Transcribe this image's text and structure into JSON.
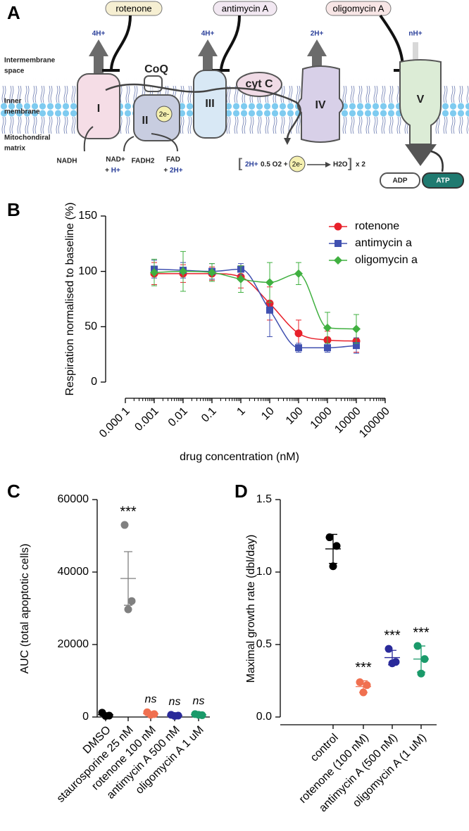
{
  "diagram": {
    "label": "A",
    "inhibitors": [
      "rotenone",
      "antimycin A",
      "oligomycin A"
    ],
    "protons": [
      "4H+",
      "4H+",
      "2H+",
      "nH+"
    ],
    "regions": [
      "Intermembrane",
      "space",
      "Inner",
      "membrane",
      "Mitochondiral",
      "matrix"
    ],
    "complexes": [
      "I",
      "II",
      "III",
      "IV",
      "V"
    ],
    "carriers": [
      "CoQ",
      "cyt C"
    ],
    "electron": "2e-",
    "substrates": [
      "NADH",
      "NAD+",
      "+ ",
      "H+",
      "FADH2",
      "FAD",
      "+ ",
      "2H+"
    ],
    "reaction": [
      "[",
      "2H+",
      "0.5 O2 +",
      "H2O",
      "]",
      "x 2"
    ],
    "products": [
      "ADP",
      "ATP"
    ]
  },
  "chart_data": [
    {
      "panel": "B",
      "type": "line",
      "x_label": "drug concentration (nM)",
      "y_label": "Respiration normalised to baseline (%)",
      "x": [
        0.001,
        0.01,
        0.1,
        1,
        10,
        100,
        1000,
        10000
      ],
      "xscale": "log",
      "xlim": [
        0.0001,
        100000
      ],
      "xticks": [
        {
          "value": 0.0001,
          "label": "0.000 1"
        },
        0.001,
        0.01,
        0.1,
        1,
        10,
        100,
        1000,
        10000,
        100000
      ],
      "ylim": [
        0,
        150
      ],
      "yticks": [
        0,
        50,
        100,
        150
      ],
      "legend": "upper right",
      "series": [
        {
          "name": "rotenone",
          "color": "#e8202a",
          "marker": "circle",
          "values": [
            98,
            98,
            98,
            95,
            71,
            44,
            38,
            37
          ],
          "errors": [
            10,
            8,
            6,
            10,
            15,
            12,
            8,
            10
          ]
        },
        {
          "name": "antimycin a",
          "color": "#4050b0",
          "marker": "square",
          "values": [
            102,
            101,
            100,
            102,
            65,
            31,
            31,
            33
          ],
          "errors": [
            8,
            7,
            7,
            5,
            24,
            4,
            4,
            7
          ]
        },
        {
          "name": "oligomycin a",
          "color": "#40b040",
          "marker": "diamond",
          "values": [
            99,
            100,
            99,
            93,
            90,
            98,
            49,
            48
          ],
          "errors": [
            12,
            18,
            8,
            12,
            18,
            10,
            14,
            13
          ]
        }
      ]
    },
    {
      "panel": "C",
      "type": "strip",
      "y_label": "AUC (total apoptotic cells)",
      "categories": [
        "DMSO",
        "staurosporine 25 nM",
        "rotenone 100 nM",
        "antimycin A 500 nM",
        "oligomycin A 1 uM"
      ],
      "colors": [
        "#000000",
        "#808080",
        "#f07050",
        "#2a2a9a",
        "#1a9a6a"
      ],
      "points": [
        [
          1200,
          400,
          300
        ],
        [
          53000,
          32000,
          29700
        ],
        [
          1300,
          800,
          600
        ],
        [
          600,
          400,
          300
        ],
        [
          800,
          500,
          600
        ]
      ],
      "means": [
        633,
        38233,
        900,
        433,
        633
      ],
      "errors": [
        260,
        7400,
        210,
        90,
        90
      ],
      "annotations": [
        null,
        "***",
        "ns",
        "ns",
        "ns"
      ],
      "ylim": [
        0,
        60000
      ],
      "yticks": [
        0,
        20000,
        40000,
        60000
      ]
    },
    {
      "panel": "D",
      "type": "strip",
      "y_label": "Maximal growth rate (dbl/day)",
      "categories": [
        "control",
        "rotenone (100 nM)",
        "antimycin A (500 nM)",
        "oligomycin A (1 uM)"
      ],
      "colors": [
        "#000000",
        "#f07050",
        "#2a2a9a",
        "#1a9a6a"
      ],
      "points": [
        [
          1.24,
          1.18,
          1.04
        ],
        [
          0.24,
          0.22,
          0.17
        ],
        [
          0.47,
          0.38,
          0.37
        ],
        [
          0.49,
          0.4,
          0.3
        ]
      ],
      "means": [
        1.16,
        0.21,
        0.41,
        0.4
      ],
      "errors": [
        0.1,
        0.04,
        0.05,
        0.09
      ],
      "annotations": [
        null,
        "***",
        "***",
        "***"
      ],
      "ylim": [
        0,
        1.5
      ],
      "yticks": [
        {
          "value": 0,
          "label": "0.0"
        },
        0.5,
        {
          "value": 1,
          "label": "1.0"
        },
        1.5
      ]
    }
  ]
}
